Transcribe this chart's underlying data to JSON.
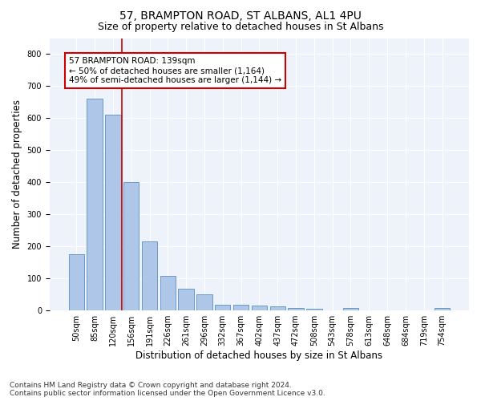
{
  "title": "57, BRAMPTON ROAD, ST ALBANS, AL1 4PU",
  "subtitle": "Size of property relative to detached houses in St Albans",
  "xlabel": "Distribution of detached houses by size in St Albans",
  "ylabel": "Number of detached properties",
  "categories": [
    "50sqm",
    "85sqm",
    "120sqm",
    "156sqm",
    "191sqm",
    "226sqm",
    "261sqm",
    "296sqm",
    "332sqm",
    "367sqm",
    "402sqm",
    "437sqm",
    "472sqm",
    "508sqm",
    "543sqm",
    "578sqm",
    "613sqm",
    "648sqm",
    "684sqm",
    "719sqm",
    "754sqm"
  ],
  "values": [
    175,
    660,
    610,
    400,
    215,
    107,
    67,
    50,
    18,
    18,
    15,
    12,
    7,
    6,
    0,
    7,
    0,
    0,
    0,
    0,
    7
  ],
  "bar_color": "#aec6e8",
  "bar_edge_color": "#5a8fc2",
  "vline_x": 2.5,
  "vline_color": "#cc0000",
  "annotation_line1": "57 BRAMPTON ROAD: 139sqm",
  "annotation_line2": "← 50% of detached houses are smaller (1,164)",
  "annotation_line3": "49% of semi-detached houses are larger (1,144) →",
  "annotation_box_color": "#cc0000",
  "footnote": "Contains HM Land Registry data © Crown copyright and database right 2024.\nContains public sector information licensed under the Open Government Licence v3.0.",
  "ylim": [
    0,
    850
  ],
  "yticks": [
    0,
    100,
    200,
    300,
    400,
    500,
    600,
    700,
    800
  ],
  "background_color": "#eef2fb",
  "title_fontsize": 10,
  "subtitle_fontsize": 9,
  "axis_label_fontsize": 8.5,
  "tick_fontsize": 7,
  "annotation_fontsize": 7.5,
  "footnote_fontsize": 6.5
}
